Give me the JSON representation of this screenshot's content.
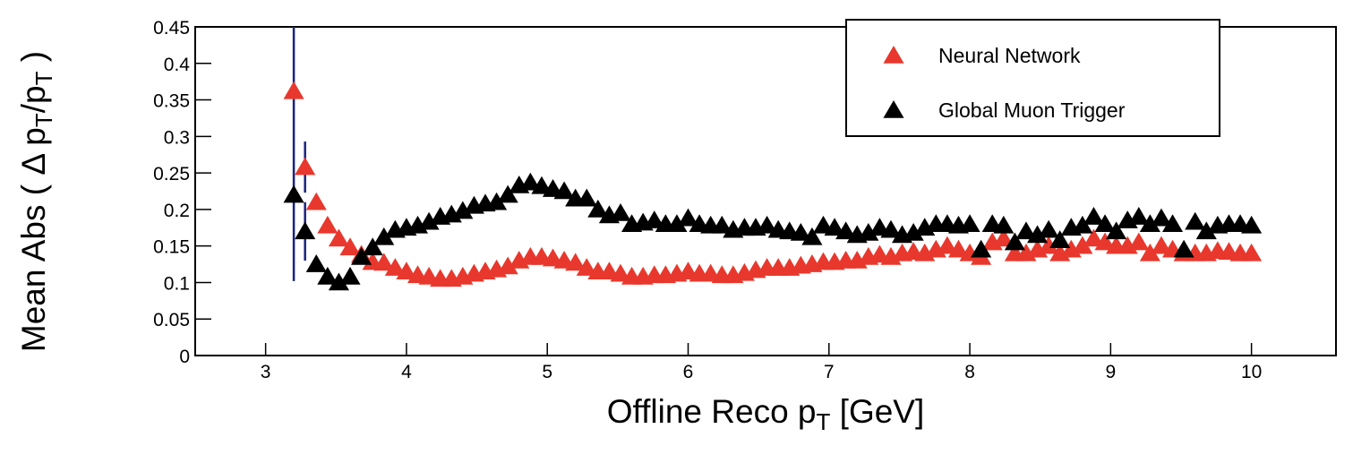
{
  "chart_data": {
    "type": "scatter",
    "xlabel": [
      {
        "text": "Offline Reco p"
      },
      {
        "text": "T",
        "sub": true
      },
      {
        "text": " [GeV]"
      }
    ],
    "ylabel": [
      {
        "text": "Mean Abs ( Δ p"
      },
      {
        "text": "T",
        "sub": true
      },
      {
        "text": "/p"
      },
      {
        "text": "T",
        "sub": true
      },
      {
        "text": " )"
      }
    ],
    "xlim": [
      2.5,
      10.6
    ],
    "ylim": [
      0,
      0.45
    ],
    "xticks": [
      3,
      4,
      5,
      6,
      7,
      8,
      9,
      10
    ],
    "yticks": [
      0,
      0.05,
      0.1,
      0.15,
      0.2,
      0.25,
      0.3,
      0.35,
      0.4,
      0.45
    ],
    "legend": "top-right",
    "error_color": "#1a237e",
    "x": [
      3.2,
      3.28,
      3.36,
      3.44,
      3.52,
      3.6,
      3.68,
      3.76,
      3.84,
      3.92,
      4.0,
      4.08,
      4.16,
      4.24,
      4.32,
      4.4,
      4.48,
      4.56,
      4.64,
      4.72,
      4.8,
      4.88,
      4.96,
      5.04,
      5.12,
      5.2,
      5.28,
      5.36,
      5.44,
      5.52,
      5.6,
      5.68,
      5.76,
      5.84,
      5.92,
      6.0,
      6.08,
      6.16,
      6.24,
      6.32,
      6.4,
      6.48,
      6.56,
      6.64,
      6.72,
      6.8,
      6.88,
      6.96,
      7.04,
      7.12,
      7.2,
      7.28,
      7.36,
      7.44,
      7.52,
      7.6,
      7.68,
      7.76,
      7.84,
      7.92,
      8.0,
      8.08,
      8.16,
      8.24,
      8.32,
      8.4,
      8.48,
      8.56,
      8.64,
      8.72,
      8.8,
      8.88,
      8.96,
      9.04,
      9.12,
      9.2,
      9.28,
      9.36,
      9.44,
      9.52,
      9.6,
      9.68,
      9.76,
      9.84,
      9.92,
      10.0
    ],
    "series": [
      {
        "name": "Neural Network",
        "color": "#e8382d",
        "values": [
          0.362,
          0.258,
          0.21,
          0.178,
          0.16,
          0.148,
          0.138,
          0.128,
          0.127,
          0.12,
          0.115,
          0.11,
          0.108,
          0.105,
          0.105,
          0.108,
          0.112,
          0.115,
          0.118,
          0.122,
          0.13,
          0.135,
          0.135,
          0.133,
          0.13,
          0.127,
          0.12,
          0.115,
          0.115,
          0.112,
          0.108,
          0.108,
          0.11,
          0.11,
          0.112,
          0.115,
          0.112,
          0.112,
          0.11,
          0.11,
          0.113,
          0.117,
          0.12,
          0.12,
          0.12,
          0.123,
          0.125,
          0.128,
          0.128,
          0.13,
          0.13,
          0.135,
          0.138,
          0.135,
          0.14,
          0.142,
          0.14,
          0.145,
          0.15,
          0.145,
          0.14,
          0.135,
          0.155,
          0.16,
          0.14,
          0.14,
          0.145,
          0.15,
          0.14,
          0.145,
          0.15,
          0.16,
          0.155,
          0.15,
          0.15,
          0.155,
          0.14,
          0.15,
          0.145,
          0.14,
          0.14,
          0.14,
          0.143,
          0.142,
          0.14,
          0.14
        ],
        "errors": [
          0.26,
          0.035,
          null,
          null,
          null,
          null,
          null,
          null,
          null,
          null,
          null,
          null,
          null,
          null,
          null,
          null,
          null,
          null,
          null,
          null,
          null,
          null,
          null,
          null,
          null,
          null,
          null,
          null,
          null,
          null,
          null,
          null,
          null,
          null,
          null,
          null,
          null,
          null,
          null,
          null,
          null,
          null,
          null,
          null,
          null,
          null,
          null,
          null,
          null,
          null,
          null,
          null,
          null,
          null,
          null,
          null,
          null,
          null,
          null,
          null,
          null,
          null,
          null,
          null,
          null,
          null,
          null,
          null,
          null,
          null,
          null,
          null,
          null,
          null,
          null,
          null,
          null,
          null,
          null,
          null,
          null,
          null,
          null,
          null,
          null,
          null
        ]
      },
      {
        "name": "Global Muon Trigger",
        "color": "#000000",
        "values": [
          0.22,
          0.17,
          0.125,
          0.108,
          0.1,
          0.108,
          0.135,
          0.148,
          0.162,
          0.172,
          0.175,
          0.178,
          0.183,
          0.19,
          0.193,
          0.198,
          0.205,
          0.208,
          0.21,
          0.22,
          0.233,
          0.237,
          0.232,
          0.228,
          0.225,
          0.215,
          0.215,
          0.2,
          0.192,
          0.195,
          0.18,
          0.182,
          0.185,
          0.18,
          0.18,
          0.188,
          0.18,
          0.178,
          0.178,
          0.172,
          0.175,
          0.175,
          0.178,
          0.172,
          0.17,
          0.168,
          0.162,
          0.178,
          0.175,
          0.17,
          0.165,
          0.168,
          0.175,
          0.172,
          0.165,
          0.168,
          0.175,
          0.18,
          0.18,
          0.178,
          0.18,
          0.145,
          0.18,
          0.178,
          0.155,
          0.17,
          0.165,
          0.172,
          0.158,
          0.175,
          0.178,
          0.19,
          0.18,
          0.17,
          0.185,
          0.19,
          0.18,
          0.188,
          0.18,
          0.145,
          0.183,
          0.17,
          0.178,
          0.18,
          0.18,
          0.178
        ],
        "errors": [
          null,
          0.04,
          null,
          null,
          null,
          null,
          null,
          null,
          null,
          null,
          null,
          null,
          null,
          null,
          null,
          null,
          null,
          null,
          null,
          null,
          null,
          null,
          null,
          null,
          null,
          null,
          null,
          null,
          null,
          null,
          null,
          null,
          null,
          null,
          null,
          null,
          null,
          null,
          null,
          null,
          null,
          null,
          null,
          null,
          null,
          null,
          null,
          null,
          null,
          null,
          null,
          null,
          null,
          null,
          null,
          null,
          null,
          null,
          null,
          null,
          null,
          null,
          null,
          null,
          null,
          null,
          null,
          null,
          null,
          null,
          null,
          null,
          null,
          null,
          null,
          null,
          null,
          null,
          null,
          null,
          null,
          null,
          null,
          null,
          null,
          null
        ]
      }
    ]
  }
}
